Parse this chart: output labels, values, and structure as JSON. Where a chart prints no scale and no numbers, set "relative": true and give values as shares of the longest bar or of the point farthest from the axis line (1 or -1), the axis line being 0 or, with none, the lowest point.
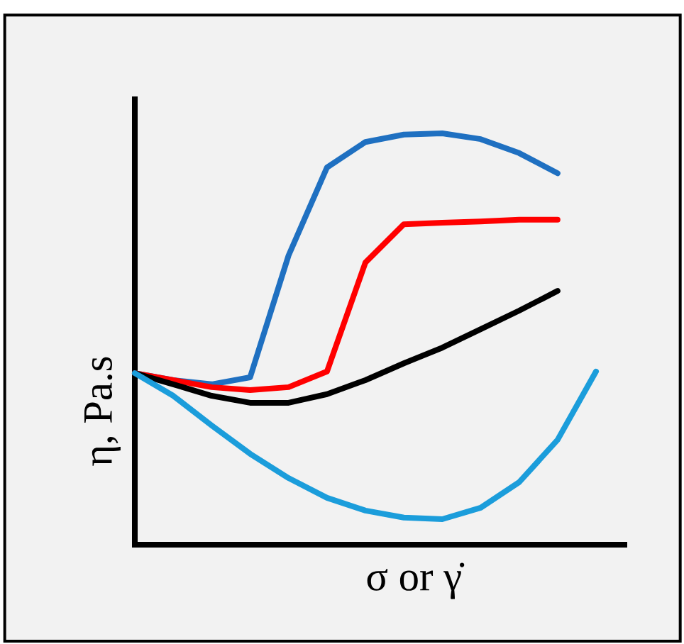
{
  "chart_data": {
    "type": "line",
    "relative": true,
    "xlabel": "σ or γ̇",
    "ylabel": "η, Pa.s",
    "categories": [
      null,
      null,
      null,
      null,
      null,
      null,
      null,
      null,
      null,
      null,
      null,
      null,
      null
    ],
    "series": [
      {
        "color": "#1f70c1",
        "values": [
          0.417,
          0.4,
          0.39,
          0.407,
          0.703,
          0.917,
          0.979,
          0.997,
          1,
          0.986,
          0.952,
          0.903,
          null
        ]
      },
      {
        "color": "#ff0000",
        "values": [
          0.417,
          0.4,
          0.383,
          0.376,
          0.383,
          0.421,
          0.686,
          0.779,
          0.783,
          0.786,
          0.79,
          0.79,
          null
        ]
      },
      {
        "color": "#000000",
        "values": [
          0.417,
          0.39,
          0.362,
          0.345,
          0.345,
          0.366,
          0.4,
          0.441,
          0.479,
          0.524,
          0.569,
          0.617,
          null
        ]
      },
      {
        "color": "#1b9ddb",
        "values": [
          0.417,
          0.362,
          0.29,
          0.221,
          0.162,
          0.114,
          0.083,
          0.066,
          0.062,
          0.09,
          0.152,
          0.255,
          0.421
        ]
      }
    ]
  }
}
